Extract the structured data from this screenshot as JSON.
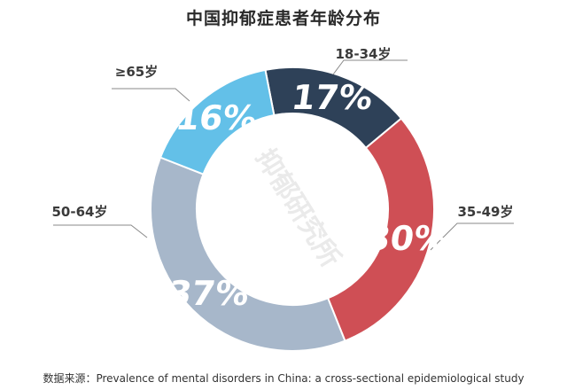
{
  "chart_data": {
    "type": "pie",
    "title": "中国抑郁症患者年龄分布",
    "categories": [
      "18-34岁",
      "35-49岁",
      "50-64岁",
      "≥65岁"
    ],
    "values": [
      17,
      30,
      37,
      16
    ],
    "value_labels": [
      "17%",
      "30%",
      "37%",
      "16%"
    ],
    "colors": [
      "#2e4158",
      "#cf4f55",
      "#a7b7ca",
      "#63c0e8"
    ],
    "hole": true,
    "watermark": "抑郁研究所"
  },
  "source": "数据来源：Prevalence of mental disorders in China: a cross-sectional  epidemiological study"
}
